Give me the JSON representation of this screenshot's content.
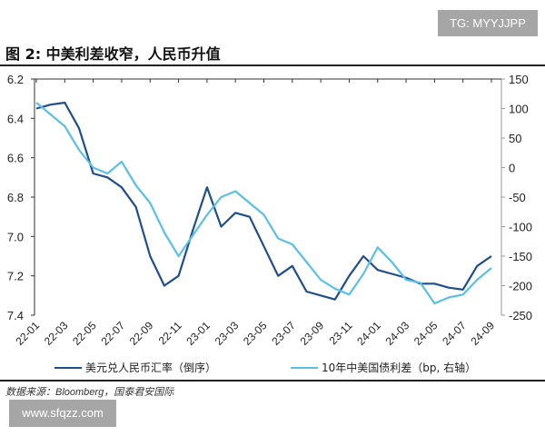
{
  "watermark_top": "TG: MYYJJPP",
  "title": "图 2:  中美利差收窄，人民币升值",
  "source": "数据来源：Bloomberg，国泰君安国际",
  "watermark_bottom": "www.sfqzz.com",
  "chart_data": {
    "type": "line",
    "title": "中美利差收窄，人民币升值",
    "x": [
      "22-01",
      "22-02",
      "22-03",
      "22-04",
      "22-05",
      "22-06",
      "22-07",
      "22-08",
      "22-09",
      "22-10",
      "22-11",
      "22-12",
      "23-01",
      "23-02",
      "23-03",
      "23-04",
      "23-05",
      "23-06",
      "23-07",
      "23-08",
      "23-09",
      "23-10",
      "23-11",
      "23-12",
      "24-01",
      "24-02",
      "24-03",
      "24-04",
      "24-05",
      "24-06",
      "24-07",
      "24-08",
      "24-09"
    ],
    "xticks": [
      "22-01",
      "22-03",
      "22-05",
      "22-07",
      "22-09",
      "22-11",
      "23-01",
      "23-03",
      "23-05",
      "23-07",
      "23-09",
      "23-11",
      "24-01",
      "24-03",
      "24-05",
      "24-07",
      "24-09"
    ],
    "left_axis": {
      "ylim": [
        6.2,
        7.4
      ],
      "inverted": true,
      "ticks": [
        "6.2",
        "6.4",
        "6.6",
        "6.8",
        "7.0",
        "7.2",
        "7.4"
      ]
    },
    "right_axis": {
      "ylim": [
        -250,
        150
      ],
      "ticks": [
        "150",
        "100",
        "50",
        "0",
        "-50",
        "-100",
        "-150",
        "-200",
        "-250"
      ]
    },
    "series": [
      {
        "name": "美元兑人民币汇率（倒序）",
        "axis": "left",
        "color": "#1f4e8c",
        "values": [
          6.35,
          6.33,
          6.32,
          6.45,
          6.68,
          6.7,
          6.75,
          6.85,
          7.1,
          7.25,
          7.2,
          6.97,
          6.75,
          6.95,
          6.88,
          6.9,
          7.05,
          7.2,
          7.15,
          7.28,
          7.3,
          7.32,
          7.2,
          7.1,
          7.17,
          7.19,
          7.21,
          7.24,
          7.24,
          7.26,
          7.27,
          7.15,
          7.1
        ]
      },
      {
        "name": "10年中美国债利差（bp, 右轴）",
        "axis": "right",
        "color": "#5bc0e8",
        "values": [
          110,
          90,
          70,
          30,
          0,
          -10,
          10,
          -30,
          -60,
          -110,
          -150,
          -115,
          -80,
          -50,
          -40,
          -60,
          -80,
          -120,
          -130,
          -160,
          -190,
          -205,
          -215,
          -180,
          -135,
          -160,
          -190,
          -195,
          -230,
          -220,
          -215,
          -190,
          -170
        ]
      }
    ],
    "legend": "bottom"
  }
}
